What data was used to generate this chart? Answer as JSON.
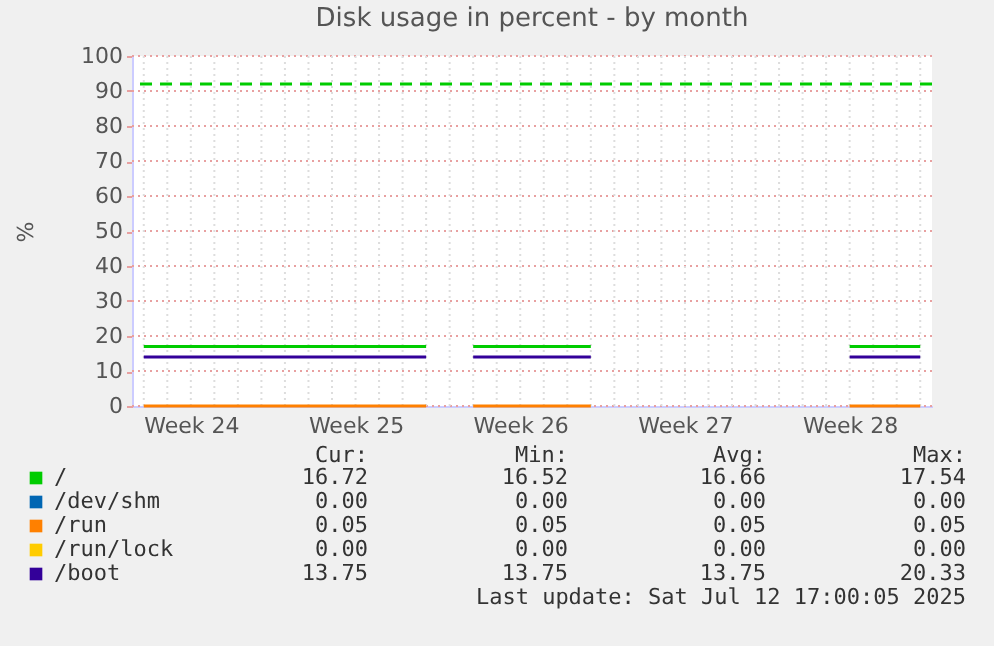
{
  "chart_data": {
    "type": "line",
    "title": "Disk usage in percent - by month",
    "ylabel": "%",
    "categories": [
      null,
      null,
      "Week 24",
      null,
      null,
      null,
      null,
      null,
      null,
      "Week 25",
      null,
      null,
      null,
      null,
      null,
      null,
      "Week 26",
      null,
      null,
      null,
      null,
      null,
      null,
      "Week 27",
      null,
      null,
      null,
      null,
      null,
      null,
      "Week 28",
      null,
      null,
      null
    ],
    "ylim": [
      0,
      100
    ],
    "yticks": [
      0,
      10,
      20,
      30,
      40,
      50,
      60,
      70,
      80,
      90,
      100
    ],
    "grid": true,
    "legend": "bottom",
    "line_style": "solid",
    "marker": "none",
    "series": [
      {
        "name": "/",
        "color": "#00cc00",
        "values": [
          17,
          17,
          17,
          17,
          17,
          17,
          17,
          17,
          17,
          17,
          17,
          17,
          17,
          null,
          17,
          17,
          17,
          17,
          17,
          17,
          null,
          null,
          null,
          null,
          null,
          null,
          null,
          null,
          null,
          null,
          17,
          17,
          17,
          17
        ]
      },
      {
        "name": "/dev/shm",
        "color": "#0066b3",
        "values": [
          null,
          null,
          null,
          null,
          null,
          null,
          null,
          null,
          null,
          null,
          null,
          null,
          null,
          null,
          null,
          null,
          null,
          null,
          null,
          null,
          null,
          null,
          null,
          null,
          null,
          null,
          null,
          null,
          null,
          null,
          null,
          null,
          null,
          null
        ]
      },
      {
        "name": "/run",
        "color": "#ff8000",
        "values": [
          0,
          0,
          0,
          0,
          0,
          0,
          0,
          0,
          0,
          0,
          0,
          0,
          0,
          null,
          0,
          0,
          0,
          0,
          0,
          0,
          null,
          null,
          null,
          null,
          null,
          null,
          null,
          null,
          null,
          null,
          0,
          0,
          0,
          0
        ]
      },
      {
        "name": "/run/lock",
        "color": "#ffcc00",
        "values": [
          null,
          null,
          null,
          null,
          null,
          null,
          null,
          null,
          null,
          null,
          null,
          null,
          null,
          null,
          null,
          null,
          null,
          null,
          null,
          null,
          null,
          null,
          null,
          null,
          null,
          null,
          null,
          null,
          null,
          null,
          null,
          null,
          null,
          null
        ]
      },
      {
        "name": "/boot",
        "color": "#330099",
        "values": [
          14,
          14,
          14,
          14,
          14,
          14,
          14,
          14,
          14,
          14,
          14,
          14,
          14,
          null,
          14,
          14,
          14,
          14,
          14,
          14,
          null,
          null,
          null,
          null,
          null,
          null,
          null,
          null,
          null,
          null,
          14,
          14,
          14,
          14
        ]
      }
    ],
    "ref_lines": [
      {
        "axis": "y",
        "value": 92,
        "label": null,
        "color": "#00cc00",
        "line_style": "dashed"
      }
    ],
    "annotations": [
      "Cur:",
      "Min:",
      "Avg:",
      "Max:",
      "16.72",
      "16.52",
      "16.66",
      "17.54",
      "0.00",
      "0.00",
      "0.00",
      "0.00",
      "0.05",
      "0.05",
      "0.05",
      "0.05",
      "0.00",
      "0.00",
      "0.00",
      "0.00",
      "13.75",
      "13.75",
      "13.75",
      "20.33",
      "Last update: Sat Jul 12 17:00:05 2025"
    ]
  }
}
